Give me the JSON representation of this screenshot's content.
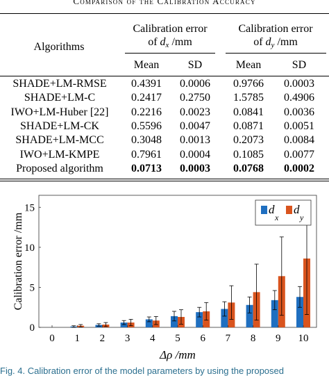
{
  "table": {
    "title": "Comparison of the Calibration Accuracy",
    "header": {
      "algorithms": "Algorithms",
      "group_dx": {
        "line1": "Calibration error",
        "prefix": "of ",
        "var": "d",
        "sub": "x",
        "suffix": " /mm"
      },
      "group_dy": {
        "line1": "Calibration error",
        "prefix": "of ",
        "var": "d",
        "sub": "y",
        "suffix": " /mm"
      },
      "mean": "Mean",
      "sd": "SD"
    },
    "rows": [
      {
        "name": "SHADE+LM-RMSE",
        "dx_mean": "0.4391",
        "dx_sd": "0.0006",
        "dy_mean": "0.9766",
        "dy_sd": "0.0003"
      },
      {
        "name": "SHADE+LM-C",
        "dx_mean": "0.2417",
        "dx_sd": "0.2750",
        "dy_mean": "1.5785",
        "dy_sd": "0.4906"
      },
      {
        "name": "IWO+LM-Huber [22]",
        "dx_mean": "0.2216",
        "dx_sd": "0.0023",
        "dy_mean": "0.0841",
        "dy_sd": "0.0036"
      },
      {
        "name": "SHADE+LM-CK",
        "dx_mean": "0.5596",
        "dx_sd": "0.0047",
        "dy_mean": "0.0871",
        "dy_sd": "0.0051"
      },
      {
        "name": "SHADE+LM-MCC",
        "dx_mean": "0.3048",
        "dx_sd": "0.0013",
        "dy_mean": "0.2073",
        "dy_sd": "0.0084"
      },
      {
        "name": "IWO+LM-KMPE",
        "dx_mean": "0.7961",
        "dx_sd": "0.0004",
        "dy_mean": "0.1085",
        "dy_sd": "0.0077"
      },
      {
        "name": "Proposed algorithm",
        "dx_mean": "0.0713",
        "dx_sd": "0.0003",
        "dy_mean": "0.0768",
        "dy_sd": "0.0002"
      }
    ]
  },
  "chart_data": {
    "type": "bar",
    "xlabel": "Δρ /mm",
    "ylabel": "Calibration error /mm",
    "categories": [
      "0",
      "1",
      "2",
      "3",
      "4",
      "5",
      "6",
      "7",
      "8",
      "9",
      "10"
    ],
    "yticks": [
      "0",
      "5",
      "10",
      "15"
    ],
    "ylim": [
      0,
      16.5
    ],
    "legend_position": "top-right",
    "grid": false,
    "series": [
      {
        "name": "d_x",
        "label_var": "d",
        "label_sub": "x",
        "color": "#1f6fc0",
        "values": [
          0,
          0.1,
          0.3,
          0.6,
          1.0,
          1.4,
          1.9,
          2.3,
          2.8,
          3.4,
          3.8
        ],
        "errors": [
          0,
          0.1,
          0.15,
          0.25,
          0.3,
          0.6,
          0.6,
          0.9,
          1.0,
          1.2,
          1.3
        ]
      },
      {
        "name": "d_y",
        "label_var": "d",
        "label_sub": "y",
        "color": "#d9541e",
        "values": [
          0,
          0.2,
          0.35,
          0.6,
          0.85,
          1.3,
          2.0,
          3.1,
          4.4,
          6.4,
          8.6
        ],
        "errors": [
          0,
          0.15,
          0.25,
          0.4,
          0.5,
          0.9,
          1.1,
          2.1,
          3.5,
          4.9,
          7.0
        ]
      }
    ]
  },
  "figure_caption": "Fig. 4.   Calibration error of the model parameters by using the proposed"
}
